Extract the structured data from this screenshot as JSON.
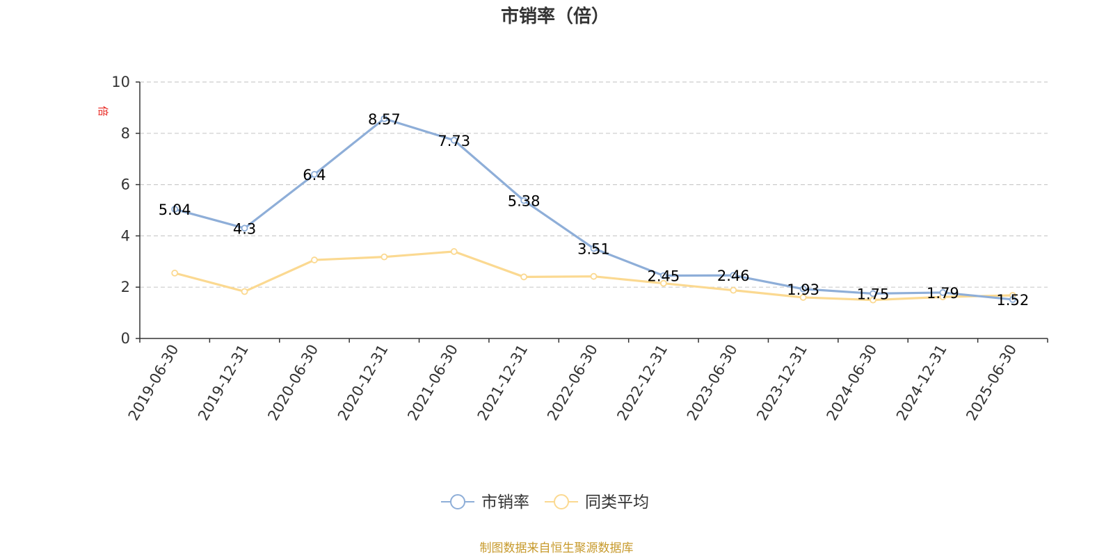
{
  "title": "市销率（倍）",
  "y_unit": "倍",
  "source": "制图数据来自恒生聚源数据库",
  "colors": {
    "series1": "#8eaed8",
    "series2": "#fbd991",
    "unit": "#e8251f",
    "source": "#c79a2c",
    "axis": "#333333",
    "grid": "#cccccc"
  },
  "chart_data": {
    "type": "line",
    "title": "市销率（倍）",
    "ylabel": "倍",
    "xlabel": "",
    "ylim": [
      0,
      10
    ],
    "yticks": [
      0,
      2,
      4,
      6,
      8,
      10
    ],
    "grid": "horizontal dashed",
    "legend": "bottom-center",
    "categories": [
      "2019-06-30",
      "2019-12-31",
      "2020-06-30",
      "2020-12-31",
      "2021-06-30",
      "2021-12-31",
      "2022-06-30",
      "2022-12-31",
      "2023-06-30",
      "2023-12-31",
      "2024-06-30",
      "2024-12-31",
      "2025-06-30"
    ],
    "series": [
      {
        "name": "市销率",
        "color": "#8eaed8",
        "show_labels": true,
        "values": [
          5.04,
          4.3,
          6.4,
          8.57,
          7.73,
          5.38,
          3.51,
          2.45,
          2.46,
          1.93,
          1.75,
          1.79,
          1.52
        ]
      },
      {
        "name": "同类平均",
        "color": "#fbd991",
        "show_labels": false,
        "values": [
          2.55,
          1.83,
          3.06,
          3.18,
          3.39,
          2.4,
          2.42,
          2.15,
          1.88,
          1.6,
          1.5,
          1.62,
          1.68
        ]
      }
    ]
  }
}
